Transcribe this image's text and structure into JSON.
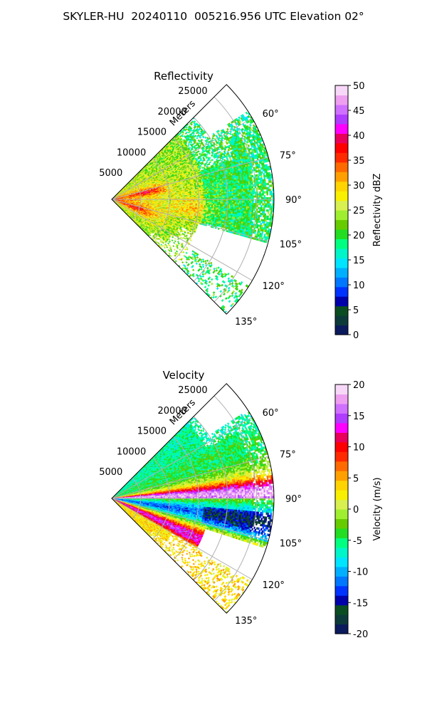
{
  "figure": {
    "suptitle": "SKYLER-HU  20240110  005216.956 UTC Elevation 02°"
  },
  "chart_data": [
    {
      "type": "heatmap",
      "title": "Reflectivity",
      "projection": "polar sector",
      "range_label": "Meters",
      "range_ticks": [
        5000,
        10000,
        15000,
        20000,
        25000
      ],
      "range_max": 28000,
      "azimuth_ticks": [
        "60°",
        "75°",
        "90°",
        "105°",
        "120°",
        "135°"
      ],
      "azimuth_range": [
        45,
        135
      ],
      "grid": true,
      "colorbar": {
        "label": "Reflectivity dBZ",
        "range": [
          0,
          50
        ],
        "ticks": [
          0,
          5,
          10,
          15,
          20,
          25,
          30,
          35,
          40,
          45,
          50
        ],
        "palette": [
          "#0a1a5c",
          "#0c3a3a",
          "#0b4d22",
          "#0000aa",
          "#0033ff",
          "#0077ff",
          "#00b0ff",
          "#00e5ff",
          "#00f5c8",
          "#00ff80",
          "#22dd22",
          "#66cc00",
          "#a0ee30",
          "#d8f050",
          "#f8f000",
          "#ffd400",
          "#ffa000",
          "#ff6a00",
          "#ff2a00",
          "#ff0000",
          "#e8005a",
          "#ff00ff",
          "#b03cff",
          "#d070ff",
          "#ee9ff0",
          "#f8d8f8"
        ]
      }
    },
    {
      "type": "heatmap",
      "title": "Velocity",
      "projection": "polar sector",
      "range_label": "Meters",
      "range_ticks": [
        5000,
        10000,
        15000,
        20000,
        25000
      ],
      "range_max": 28000,
      "azimuth_ticks": [
        "60°",
        "75°",
        "90°",
        "105°",
        "120°",
        "135°"
      ],
      "azimuth_range": [
        45,
        135
      ],
      "grid": true,
      "colorbar": {
        "label": "Velocity (m/s)",
        "range": [
          -20,
          20
        ],
        "ticks": [
          -20,
          -15,
          -10,
          -5,
          0,
          5,
          10,
          15,
          20
        ],
        "palette": [
          "#0a1a5c",
          "#0c3a3a",
          "#0b4d22",
          "#0000aa",
          "#0033ff",
          "#0077ff",
          "#00b0ff",
          "#00e5ff",
          "#00f5c8",
          "#00ff80",
          "#22dd22",
          "#66cc00",
          "#a0ee30",
          "#d8f050",
          "#f8f000",
          "#ffd400",
          "#ffa000",
          "#ff6a00",
          "#ff2a00",
          "#ff0000",
          "#e8005a",
          "#ff00ff",
          "#b03cff",
          "#d070ff",
          "#ee9ff0",
          "#f8d8f8"
        ]
      }
    }
  ]
}
